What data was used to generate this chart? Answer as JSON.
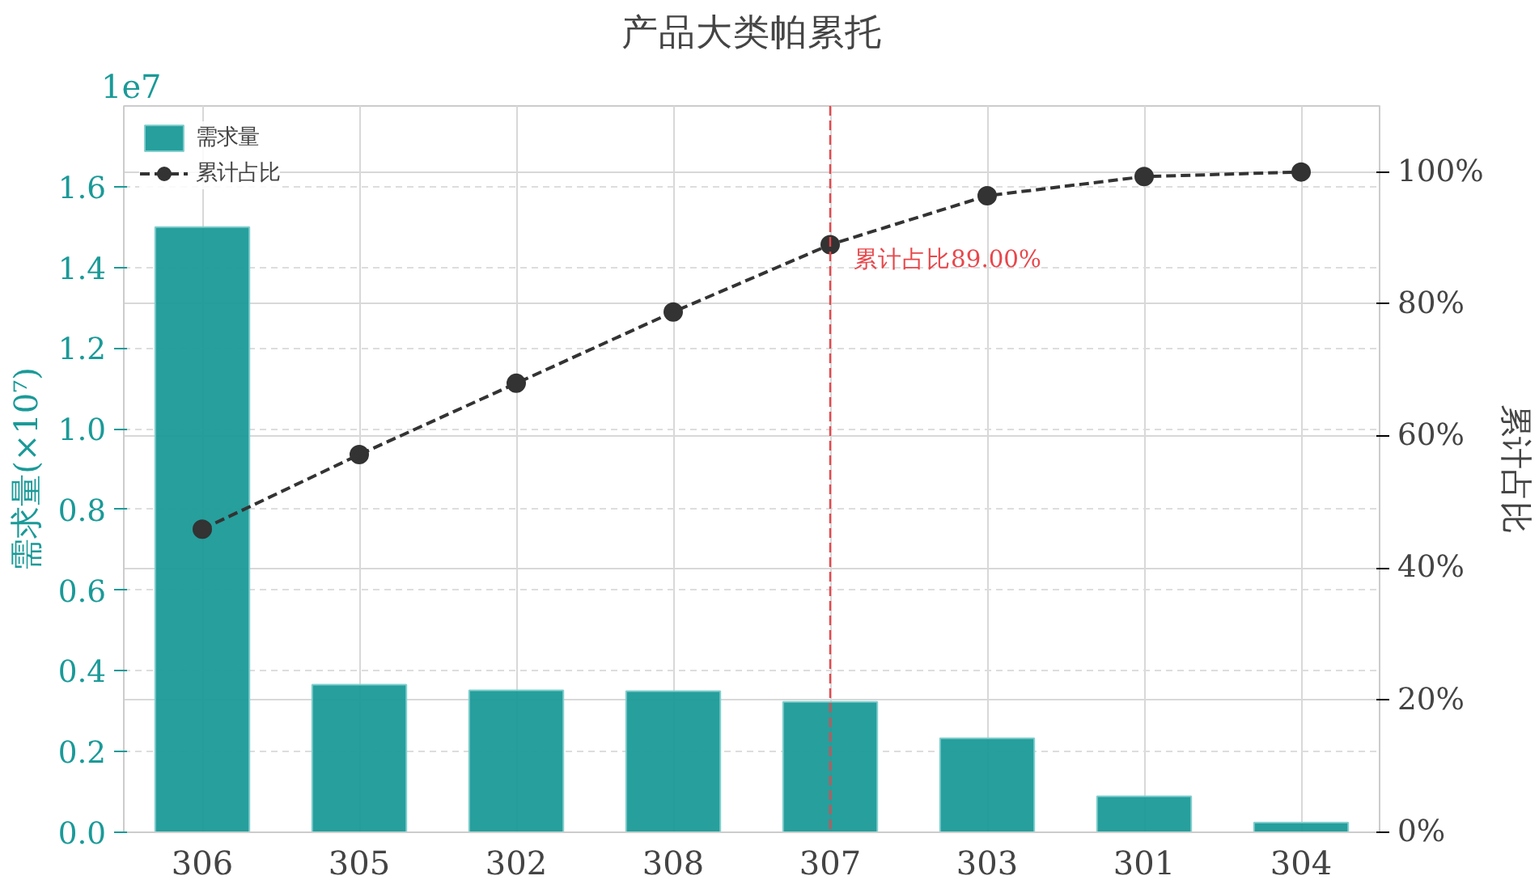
{
  "chart_data": {
    "type": "bar",
    "title": "产品大类帕累托",
    "ylabel": "需求量(×10⁷)",
    "y2label": "累计占比",
    "categories": [
      "306",
      "305",
      "302",
      "308",
      "307",
      "303",
      "301",
      "304"
    ],
    "series": [
      {
        "name": "需求量",
        "color": "#1a9a98",
        "values": [
          1.5,
          0.366,
          0.352,
          0.35,
          0.323,
          0.233,
          0.089,
          0.024
        ]
      },
      {
        "name": "累计占比",
        "type": "line",
        "axis": "y2",
        "color": "#333333",
        "marker": "circle",
        "line_style": "dashed",
        "values": [
          45.9,
          57.2,
          68.0,
          78.8,
          89.0,
          96.4,
          99.3,
          100
        ]
      }
    ],
    "ylim": [
      0,
      1.8
    ],
    "yticks": [
      {
        "value": 0,
        "label": "0.0"
      },
      {
        "value": 0.2,
        "label": "0.2"
      },
      {
        "value": 0.4,
        "label": "0.4"
      },
      {
        "value": 0.6,
        "label": "0.6"
      },
      {
        "value": 0.8,
        "label": "0.8"
      },
      {
        "value": 1.0,
        "label": "1.0"
      },
      {
        "value": 1.2,
        "label": "1.2"
      },
      {
        "value": 1.4,
        "label": "1.4"
      },
      {
        "value": 1.6,
        "label": "1.6"
      }
    ],
    "y2lim": [
      0,
      110
    ],
    "y2ticks": [
      {
        "value": 0,
        "label": "0%"
      },
      {
        "value": 20,
        "label": "20%"
      },
      {
        "value": 40,
        "label": "40%"
      },
      {
        "value": 60,
        "label": "60%"
      },
      {
        "value": 80,
        "label": "80%"
      },
      {
        "value": 100,
        "label": "100%"
      }
    ],
    "ref_lines": [
      {
        "axis": "x",
        "value": "307",
        "label": "累计占比89.00%",
        "color": "#e8474b",
        "line_style": "dashed"
      }
    ],
    "annotations": [
      "1e7"
    ],
    "grid": true,
    "legend": "top left"
  }
}
